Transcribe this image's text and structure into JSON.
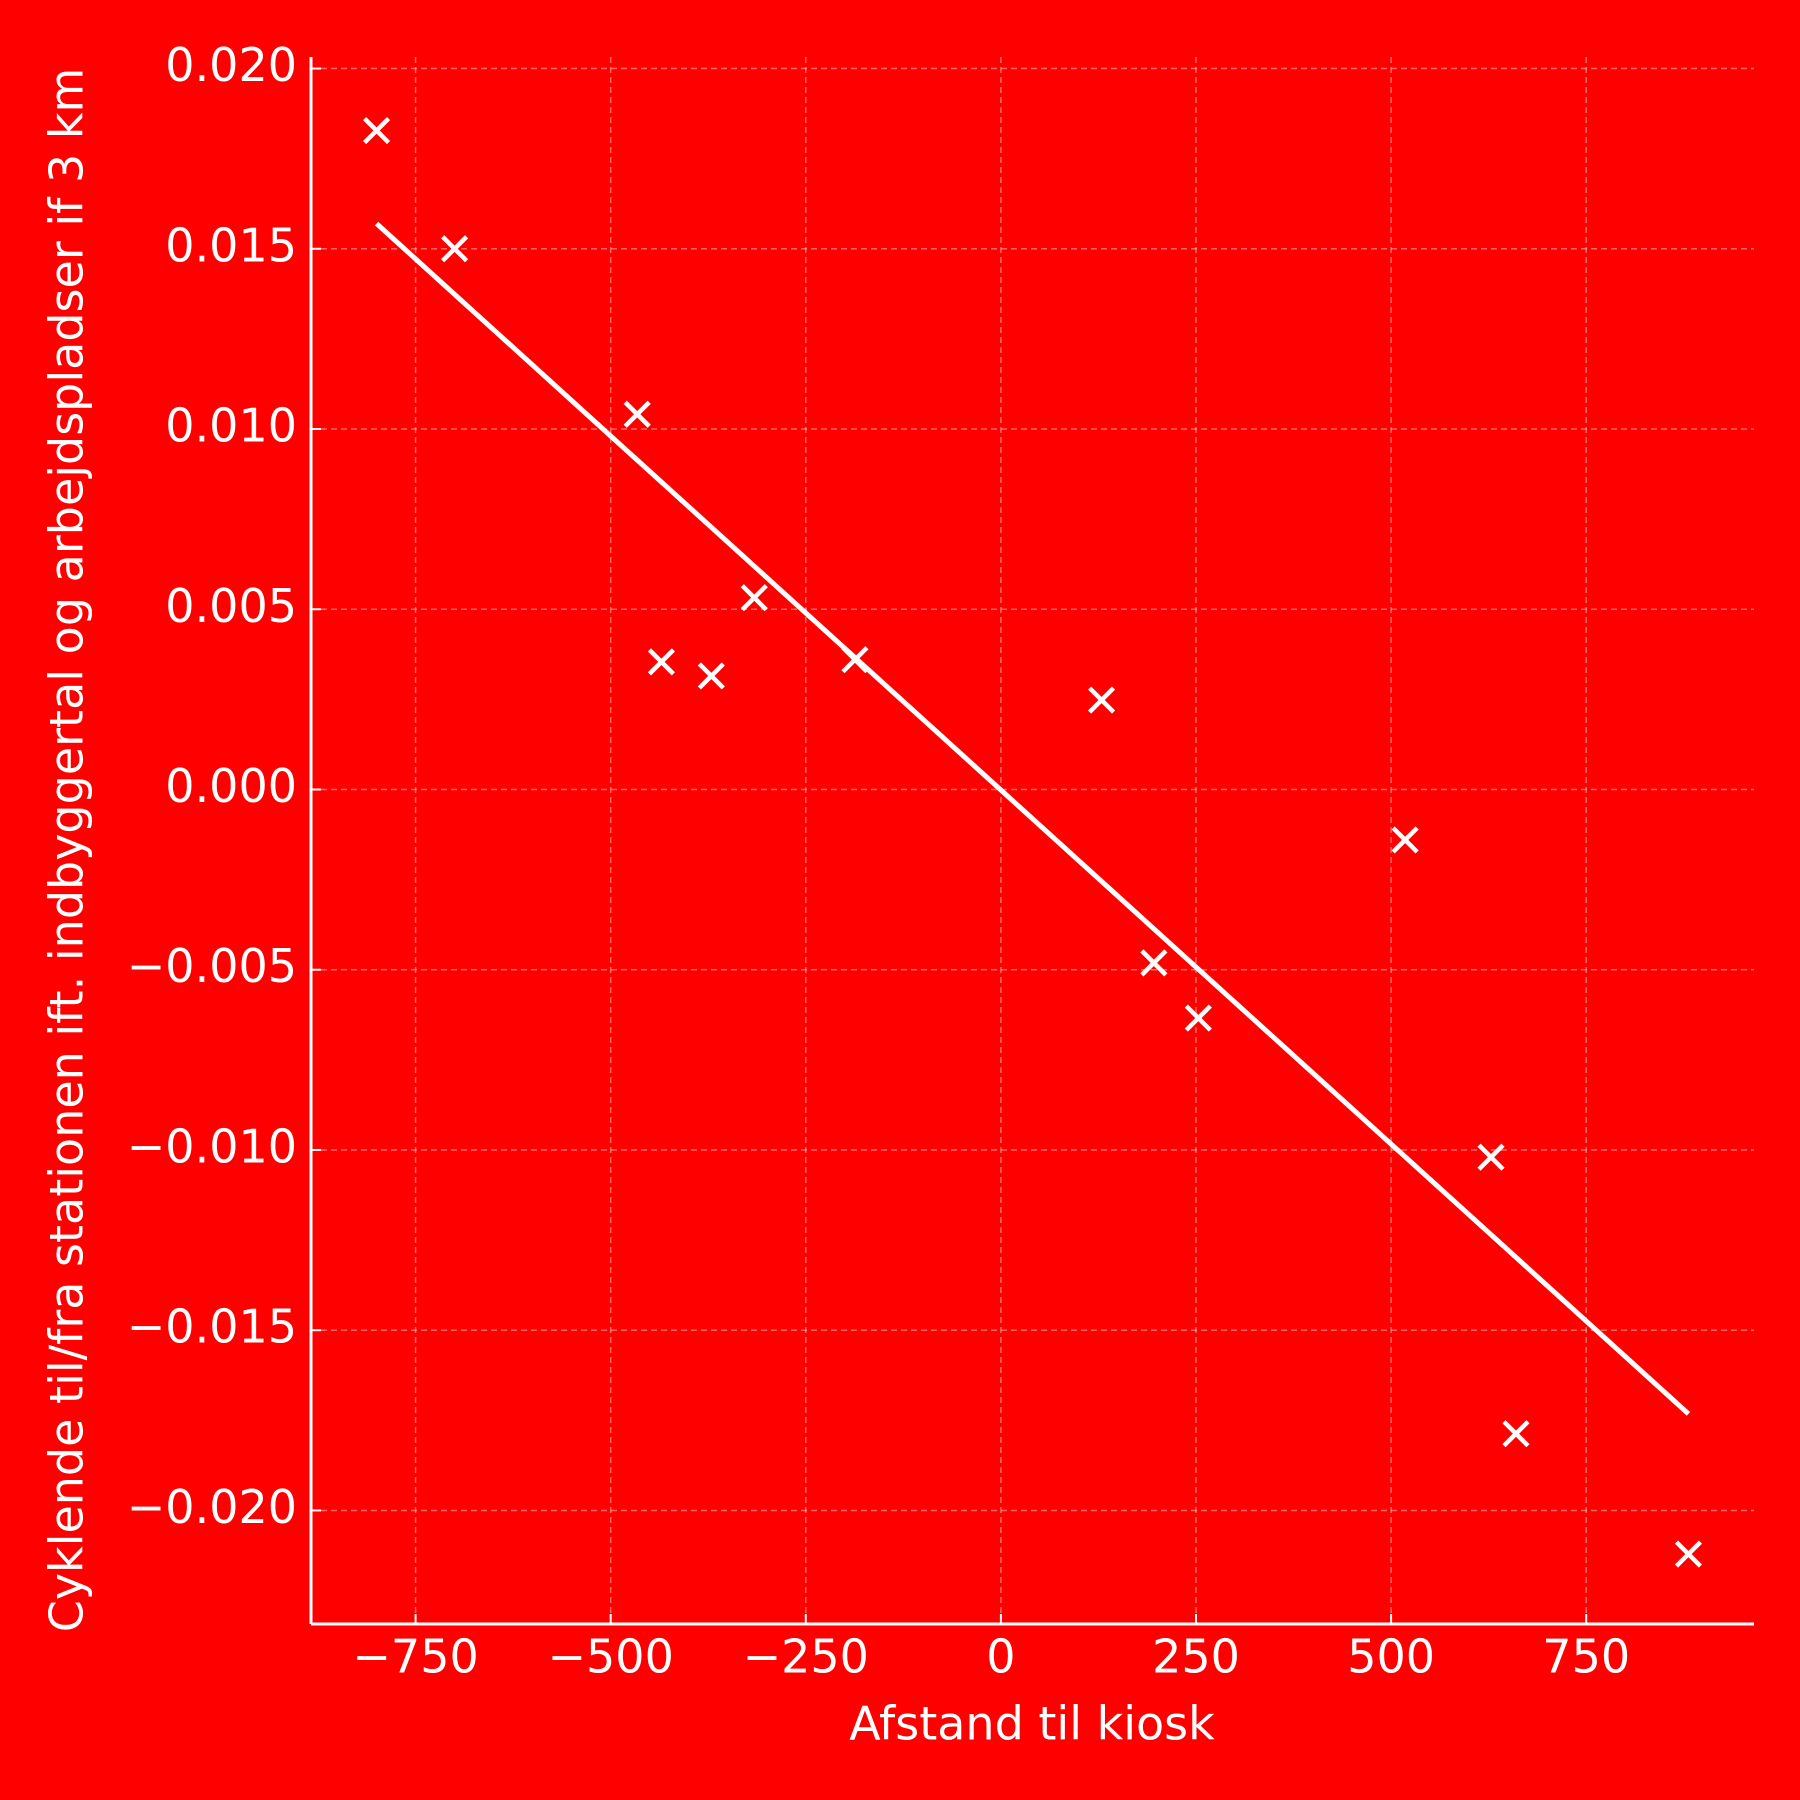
{
  "chart_data": {
    "type": "scatter",
    "xlabel": "Afstand til kiosk",
    "ylabel": "Cyklende til/fra stationen ift. indbyggertal og arbejdspladser if 3 km",
    "background": "#ff0000",
    "grid": true,
    "xlim": [
      -884,
      965
    ],
    "ylim": [
      -0.02315,
      0.02032
    ],
    "xticks": [
      {
        "value": -750,
        "label": "−750"
      },
      {
        "value": -500,
        "label": "−500"
      },
      {
        "value": -250,
        "label": "−250"
      },
      0,
      250,
      500,
      750
    ],
    "yticks": [
      {
        "value": -0.02,
        "label": "−0.020"
      },
      {
        "value": -0.015,
        "label": "−0.015"
      },
      {
        "value": -0.01,
        "label": "−0.010"
      },
      {
        "value": -0.005,
        "label": "−0.005"
      },
      {
        "value": 0,
        "label": "0.000"
      },
      {
        "value": 0.005,
        "label": "0.005"
      },
      {
        "value": 0.01,
        "label": "0.010"
      },
      {
        "value": 0.015,
        "label": "0.015"
      },
      {
        "value": 0.02,
        "label": "0.020"
      }
    ],
    "series": [
      {
        "style": "marker",
        "color": "#ffffff",
        "x": [
          -800,
          -700,
          -466,
          -435,
          -371,
          -316,
          -187,
          129,
          196,
          253,
          518,
          628,
          660,
          881
        ],
        "values": [
          0.01828,
          0.015,
          0.01041,
          0.00354,
          0.00315,
          0.00532,
          0.0036,
          0.00248,
          -0.00481,
          -0.00634,
          -0.0014,
          -0.0102,
          -0.01787,
          -0.02121
        ]
      },
      {
        "style": "line",
        "color": "#ffffff",
        "x": [
          -800,
          881
        ],
        "values": [
          0.0157,
          -0.01732
        ]
      }
    ]
  }
}
